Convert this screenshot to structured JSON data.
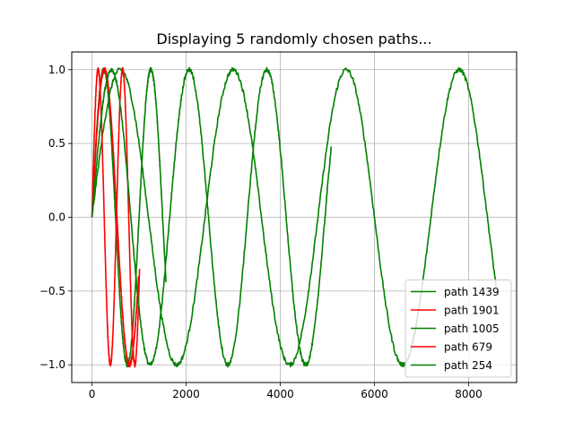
{
  "chart_data": {
    "type": "line",
    "title": "Displaying 5 randomly chosen paths...",
    "xlabel": "",
    "ylabel": "",
    "xlim": [
      -430,
      9020
    ],
    "ylim": [
      -1.12,
      1.12
    ],
    "xticks": [
      0,
      2000,
      4000,
      6000,
      8000
    ],
    "xtick_labels": [
      "0",
      "2000",
      "4000",
      "6000",
      "8000"
    ],
    "yticks": [
      -1.0,
      -0.5,
      0.0,
      0.5,
      1.0
    ],
    "ytick_labels": [
      "−1.0",
      "−0.5",
      "0.0",
      "0.5",
      "1.0"
    ],
    "grid": true,
    "legend_position": "lower-right",
    "series": [
      {
        "name": "path 1439",
        "color": "#008000",
        "period": 1000,
        "x_max": 1570
      },
      {
        "name": "path 1901",
        "color": "#ff0000",
        "period": 1060,
        "x_max": 990
      },
      {
        "name": "path 1005",
        "color": "#008000",
        "period": 2400,
        "x_max": 8580
      },
      {
        "name": "path 679",
        "color": "#ff0000",
        "period": 520,
        "x_max": 1010
      },
      {
        "name": "path 254",
        "color": "#008000",
        "period": 1650,
        "x_max": 5080
      }
    ]
  }
}
